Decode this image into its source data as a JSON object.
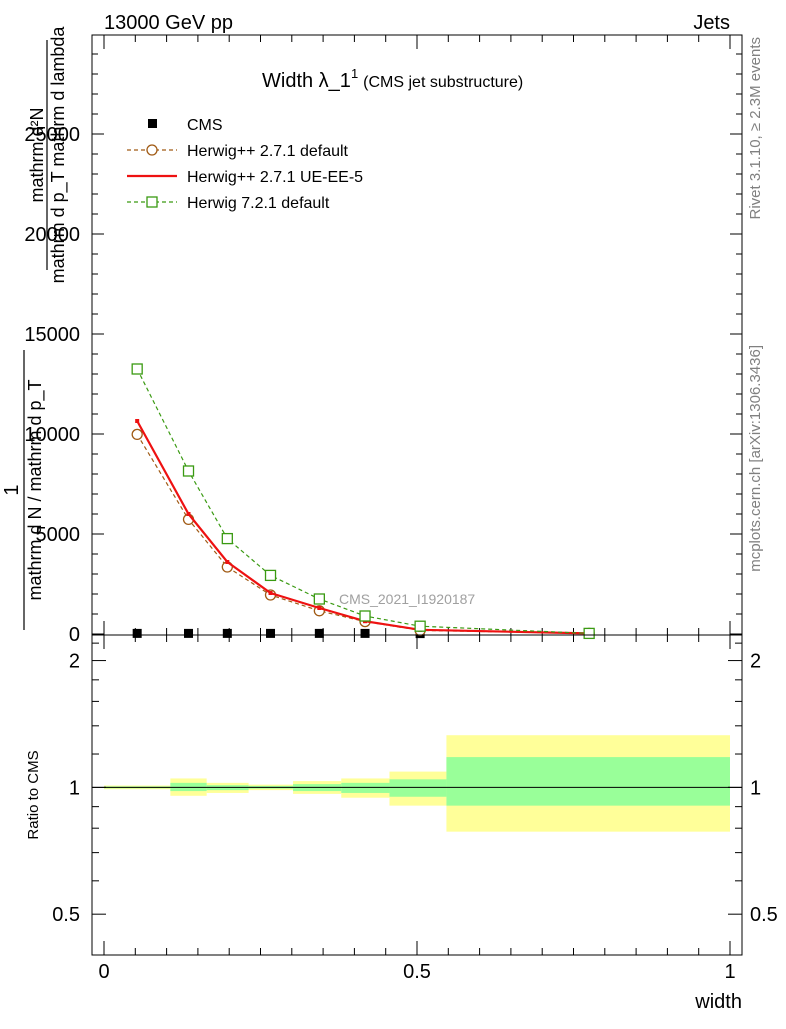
{
  "header": {
    "left": "13000 GeV pp",
    "right": "Jets"
  },
  "side_labels": {
    "rivet": "Rivet 3.1.10, ≥ 2.3M events",
    "mcplots": "mcplots.cern.ch [arXiv:1306.3436]"
  },
  "chart_data": [
    {
      "type": "line",
      "title_main": "Width λ_1",
      "title_sup": "1",
      "title_sub": "(CMS jet substructure)",
      "ylabel_num": "mathrm d²N",
      "ylabel_den": "mathrm d p_T mathrm d lambda",
      "ylabel_num2": "1",
      "ylabel_den2": "mathrm d N / mathrm d p_T",
      "watermark": "CMS_2021_I1920187",
      "xlim": [
        0,
        1
      ],
      "ylim": [
        0,
        30000
      ],
      "y_ticks": [
        0,
        5000,
        10000,
        15000,
        20000,
        25000
      ],
      "y_tick_labels": [
        "0",
        "5000",
        "10000",
        "15000",
        "20000",
        "25000"
      ],
      "legend_position": "top-left",
      "series": [
        {
          "name": "CMS",
          "color": "#000000",
          "marker": "filled-square",
          "x": [
            0.053,
            0.135,
            0.197,
            0.266,
            0.344,
            0.417,
            0.505,
            0.775
          ],
          "y": [
            30,
            30,
            30,
            30,
            30,
            30,
            20,
            5
          ]
        },
        {
          "name": "Herwig++ 2.7.1 default",
          "color": "#a05a14",
          "marker": "open-circle",
          "dash": true,
          "x": [
            0.053,
            0.135,
            0.197,
            0.266,
            0.344,
            0.417,
            0.505,
            0.775
          ],
          "y": [
            9980,
            5730,
            3350,
            1950,
            1160,
            620,
            180,
            30
          ]
        },
        {
          "name": "Herwig++ 2.7.1 UE-EE-5",
          "color": "#ee1111",
          "marker": "none",
          "dash": false,
          "x": [
            0.053,
            0.135,
            0.197,
            0.266,
            0.344,
            0.417,
            0.505,
            0.775
          ],
          "y": [
            10650,
            6000,
            3600,
            2050,
            1300,
            640,
            210,
            30
          ]
        },
        {
          "name": "Herwig 7.2.1 default",
          "color": "#3a9a12",
          "marker": "open-square",
          "dash": true,
          "x": [
            0.053,
            0.135,
            0.197,
            0.266,
            0.344,
            0.417,
            0.505,
            0.775
          ],
          "y": [
            13250,
            8150,
            4770,
            2930,
            1750,
            900,
            390,
            30
          ]
        }
      ]
    },
    {
      "type": "area",
      "ylabel": "Ratio to CMS",
      "xlabel": "width",
      "xlim": [
        0,
        1
      ],
      "ylim": [
        0.4,
        2.3
      ],
      "y_scale": "log",
      "y_ticks": [
        0.5,
        1,
        2
      ],
      "y_tick_labels": [
        "0.5",
        "1",
        "2"
      ],
      "x_ticks": [
        0,
        0.5,
        1
      ],
      "x_tick_labels": [
        "0",
        "0.5",
        "1"
      ],
      "bands": {
        "bin_edges": [
          0.0,
          0.106,
          0.164,
          0.231,
          0.302,
          0.379,
          0.456,
          0.547,
          1.0
        ],
        "yellow_low": [
          0.99,
          0.955,
          0.97,
          0.985,
          0.965,
          0.945,
          0.905,
          0.785
        ],
        "yellow_high": [
          1.01,
          1.05,
          1.025,
          1.015,
          1.035,
          1.05,
          1.09,
          1.33
        ],
        "green_low": [
          0.995,
          0.98,
          0.985,
          0.993,
          0.98,
          0.97,
          0.95,
          0.905
        ],
        "green_high": [
          1.005,
          1.025,
          1.012,
          1.008,
          1.018,
          1.025,
          1.045,
          1.18
        ],
        "yellow_color": "#ffff99",
        "green_color": "#99ff99"
      }
    }
  ]
}
